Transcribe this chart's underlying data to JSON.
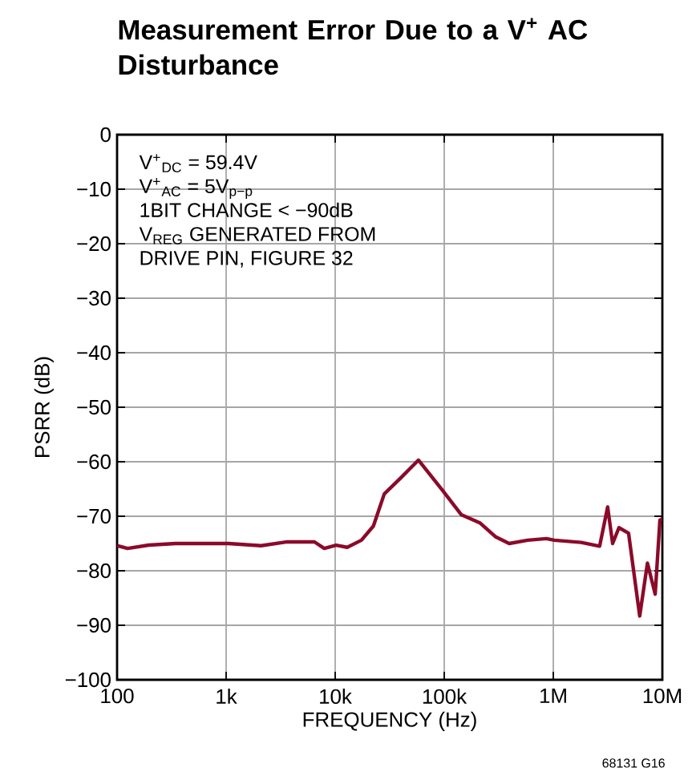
{
  "chart_data": {
    "type": "line",
    "title": "Measurement Error Due to a V$^{+}$ AC Disturbance",
    "xlabel": "FREQUENCY (Hz)",
    "ylabel": "PSRR (dB)",
    "log": "x",
    "grid": true,
    "line_style": "solid",
    "xlim": [
      100,
      10000000
    ],
    "ylim": [
      -100,
      0
    ],
    "xticks": [
      100,
      {
        "value": 1000,
        "label": "1k"
      },
      {
        "value": 10000,
        "label": "10k"
      },
      {
        "value": 100000,
        "label": "100k"
      },
      {
        "value": 1000000,
        "label": "1M"
      },
      {
        "value": 10000000,
        "label": "10M"
      }
    ],
    "yticks": [
      {
        "value": -100,
        "label": "−100"
      },
      {
        "value": -90,
        "label": "−90"
      },
      {
        "value": -80,
        "label": "−80"
      },
      {
        "value": -70,
        "label": "−70"
      },
      {
        "value": -60,
        "label": "−60"
      },
      {
        "value": -50,
        "label": "−50"
      },
      {
        "value": -40,
        "label": "−40"
      },
      {
        "value": -30,
        "label": "−30"
      },
      {
        "value": -20,
        "label": "−20"
      },
      {
        "value": -10,
        "label": "−10"
      },
      0
    ],
    "annotations": [
      "V$^{+}$$_{DC}$ = 59.4V",
      "V$^{+}$$_{AC}$ = 5V$_{p−p}$",
      "1BIT CHANGE < −90dB",
      "V$_{REG}$ GENERATED FROM",
      "DRIVE PIN, FIGURE 32",
      "68131 G16"
    ],
    "series": [
      {
        "color": "#8b0a2a",
        "x": [
          100,
          125,
          195,
          344,
          537,
          1050,
          2090,
          3630,
          6460,
          7940,
          10200,
          12900,
          17400,
          22400,
          28200,
          39800,
          58000,
          97000,
          143000,
          212000,
          297000,
          394000,
          583000,
          865000,
          1020000,
          1800000,
          2660000,
          3150000,
          3500000,
          4000000,
          4900000,
          6200000,
          7300000,
          8600000,
          9500000,
          10000000
        ],
        "values": [
          -75.4,
          -75.9,
          -75.3,
          -75.0,
          -75.0,
          -75.0,
          -75.4,
          -74.7,
          -74.7,
          -75.9,
          -75.3,
          -75.7,
          -74.4,
          -71.8,
          -65.9,
          -63.0,
          -59.7,
          -65.3,
          -69.7,
          -71.2,
          -73.8,
          -75.0,
          -74.4,
          -74.1,
          -74.4,
          -74.8,
          -75.5,
          -68.3,
          -75.0,
          -72.1,
          -73.1,
          -88.3,
          -78.6,
          -84.3,
          -70.7,
          -70.5
        ]
      }
    ]
  }
}
